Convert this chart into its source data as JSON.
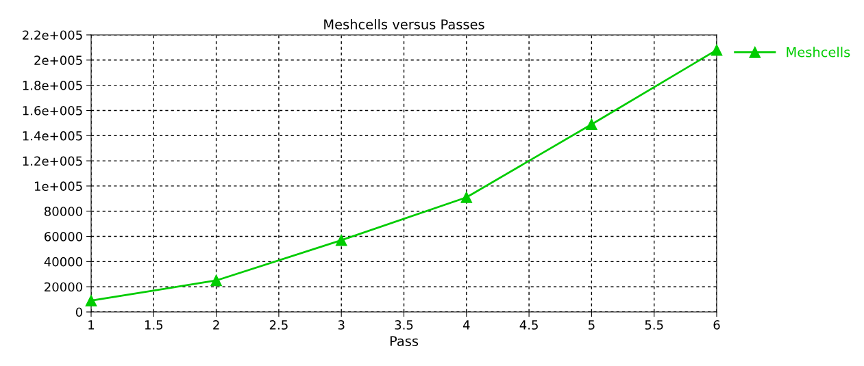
{
  "chart_data": {
    "type": "line",
    "title": "Meshcells versus Passes",
    "xlabel": "Pass",
    "x": [
      1,
      2,
      3,
      4,
      5,
      6
    ],
    "series": [
      {
        "name": "Meshcells",
        "color": "#00cc00",
        "values": [
          9000,
          25000,
          57000,
          91000,
          149000,
          208000
        ]
      }
    ],
    "xlim": [
      1,
      6
    ],
    "xticks": [
      1,
      1.5,
      2,
      2.5,
      3,
      3.5,
      4,
      4.5,
      5,
      5.5,
      6
    ],
    "ylim": [
      0,
      220000
    ],
    "yticks": [
      0,
      20000,
      40000,
      60000,
      80000,
      {
        "value": 100000,
        "label": "1e+005"
      },
      {
        "value": 120000,
        "label": "1.2e+005"
      },
      {
        "value": 140000,
        "label": "1.4e+005"
      },
      {
        "value": 160000,
        "label": "1.6e+005"
      },
      {
        "value": 180000,
        "label": "1.8e+005"
      },
      {
        "value": 200000,
        "label": "2e+005"
      },
      {
        "value": 220000,
        "label": "2.2e+005"
      }
    ],
    "grid": true,
    "legend": "top right",
    "marker": "triangle",
    "line_style": "solid"
  }
}
